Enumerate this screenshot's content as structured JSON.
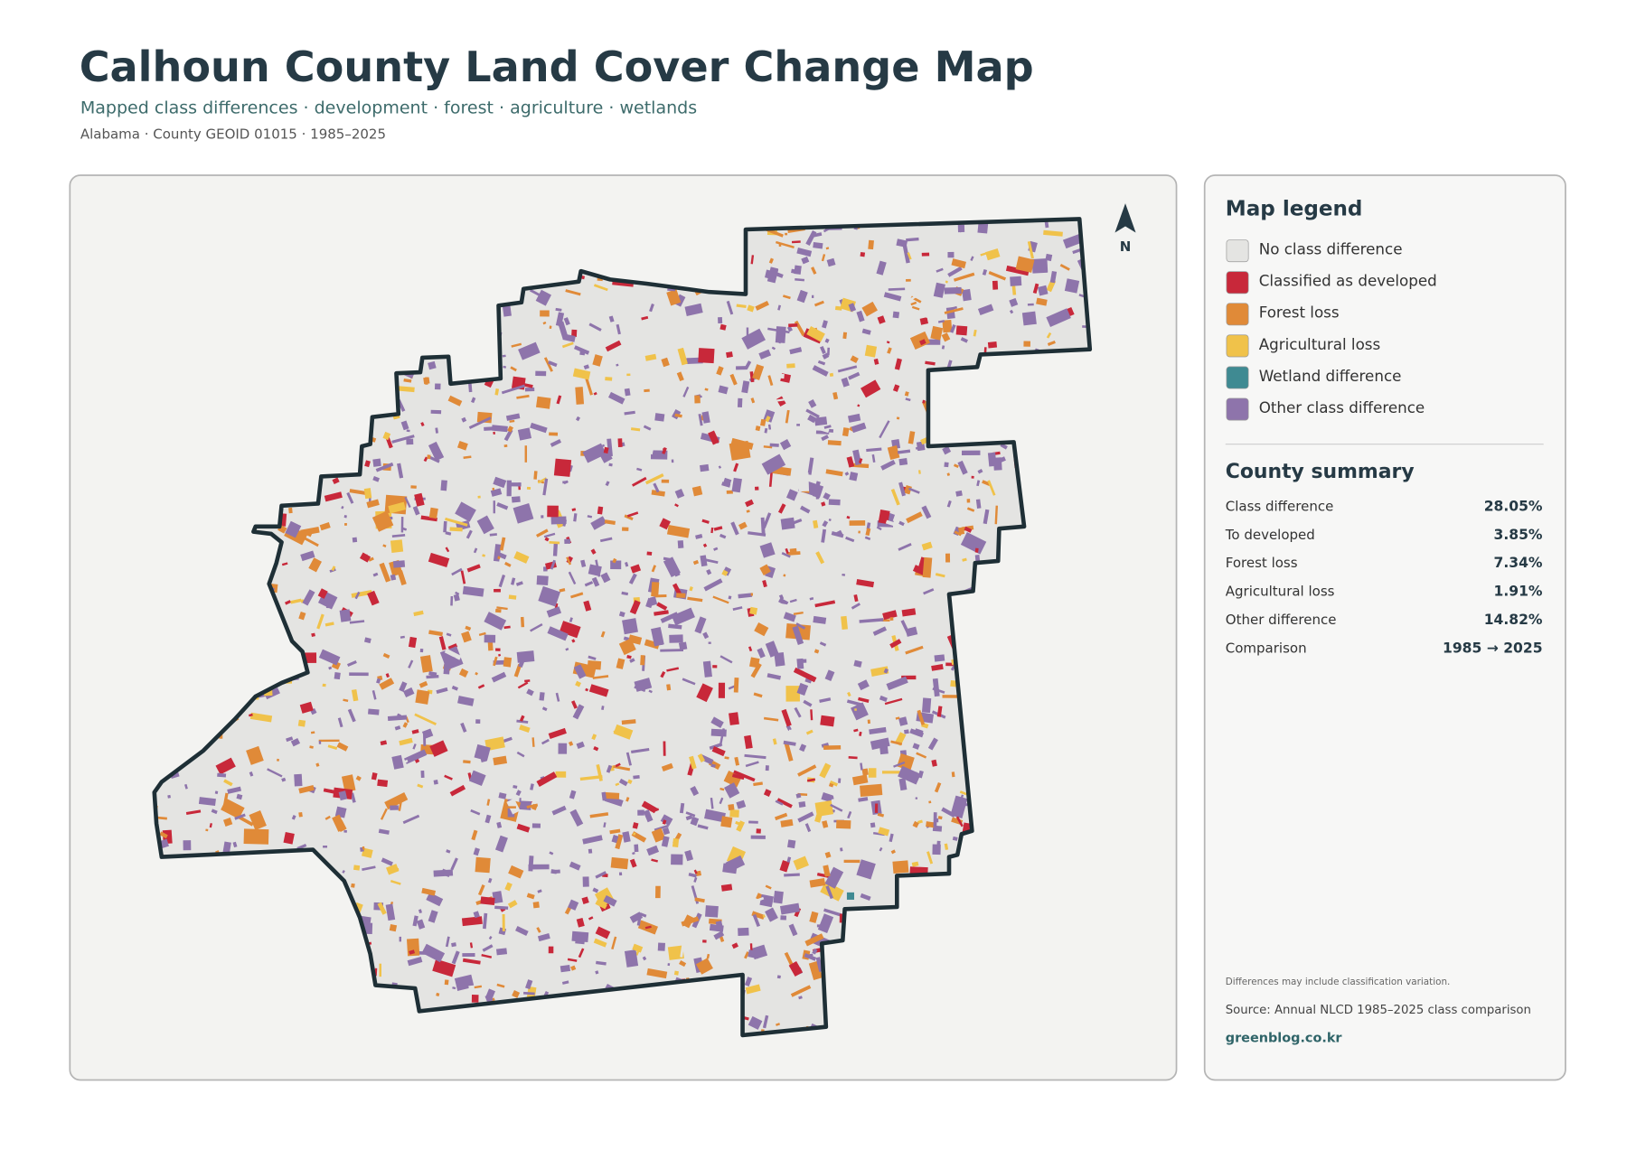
{
  "header": {
    "title": "Calhoun County Land Cover Change Map",
    "subtitle": "Mapped class differences · development · forest · agriculture · wetlands",
    "meta": "Alabama · County GEOID 01015 · 1985–2025"
  },
  "map": {
    "north": "N"
  },
  "legend": {
    "title": "Map legend",
    "items": [
      {
        "label": "No class difference",
        "color": "#e4e4e2"
      },
      {
        "label": "Classified as developed",
        "color": "#c8283a"
      },
      {
        "label": "Forest loss",
        "color": "#e08a38"
      },
      {
        "label": "Agricultural loss",
        "color": "#f0c24a"
      },
      {
        "label": "Wetland difference",
        "color": "#3f8a92"
      },
      {
        "label": "Other class difference",
        "color": "#8e74ab"
      }
    ]
  },
  "summary": {
    "title": "County summary",
    "rows": [
      {
        "label": "Class difference",
        "value": "28.05%"
      },
      {
        "label": "To developed",
        "value": "3.85%"
      },
      {
        "label": "Forest loss",
        "value": "7.34%"
      },
      {
        "label": "Agricultural loss",
        "value": "1.91%"
      },
      {
        "label": "Other difference",
        "value": "14.82%"
      },
      {
        "label": "Comparison",
        "value": "1985 → 2025"
      }
    ]
  },
  "footer": {
    "note": "Differences may include classification variation.",
    "source": "Source: Annual NLCD 1985–2025 class comparison",
    "site": "greenblog.co.kr"
  }
}
